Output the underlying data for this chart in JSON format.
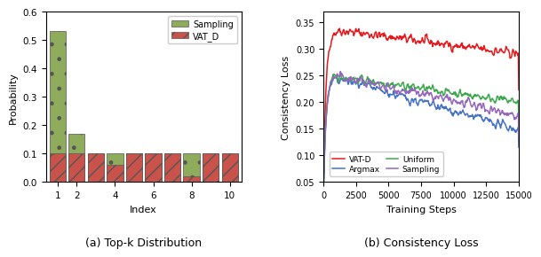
{
  "bar_sampling_vals": [
    0.53,
    0.17,
    0.1,
    0.1,
    0.1,
    0.1,
    0.1,
    0.1,
    0.1,
    0.1
  ],
  "bar_vatd_vals": [
    0.1,
    0.1,
    0.1,
    0.06,
    0.1,
    0.1,
    0.1,
    0.02,
    0.1,
    0.1
  ],
  "bar_x": [
    1,
    2,
    3,
    4,
    5,
    6,
    7,
    8,
    9,
    10
  ],
  "bar_width": 0.85,
  "bar_sampling_color": "#8fac5c",
  "bar_vatd_color": "#c9524a",
  "bar_sampling_hatch": ".",
  "bar_vatd_hatch": "//",
  "xlabel_bar": "Index",
  "ylabel_bar": "Probability",
  "ylim_bar": [
    0.0,
    0.6
  ],
  "yticks_bar": [
    0.0,
    0.1,
    0.2,
    0.3,
    0.4,
    0.5,
    0.6
  ],
  "xlim_bar": [
    0.4,
    10.6
  ],
  "xtick_positions_bar": [
    1,
    2,
    4,
    6,
    8,
    10
  ],
  "xtick_labels_bar": [
    "1",
    "2",
    "4",
    "6",
    "8",
    "10"
  ],
  "caption_a": "(a) Top-k Distribution",
  "caption_b": "(b) Consistency Loss",
  "xlabel_line": "Training Steps",
  "ylabel_line": "Consistency Loss",
  "ylim_line": [
    0.05,
    0.37
  ],
  "yticks_line": [
    0.05,
    0.1,
    0.15,
    0.2,
    0.25,
    0.3,
    0.35
  ],
  "xticks_line": [
    0,
    2500,
    5000,
    7500,
    10000,
    12500,
    15000
  ],
  "xtick_labels_line": [
    "0",
    "2500",
    "5000",
    "7500",
    "10000",
    "12500",
    "15000"
  ],
  "line_colors": {
    "VAT-D": "#e8191c",
    "Uniform": "#3da84e",
    "Argmax": "#4472c4",
    "Sampling": "#9467bd"
  }
}
